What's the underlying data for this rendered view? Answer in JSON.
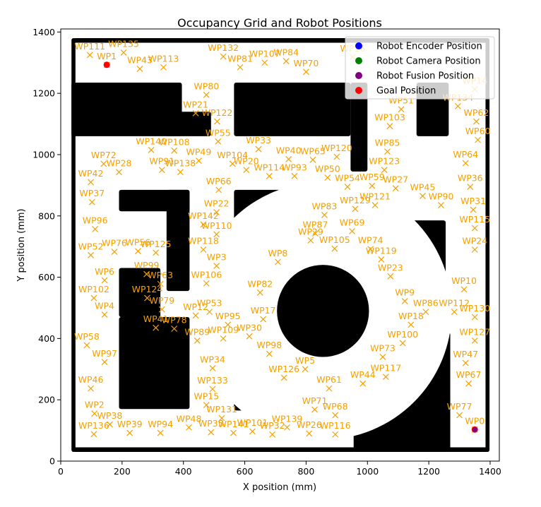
{
  "chart_data": {
    "type": "scatter",
    "title": "Occupancy Grid and Robot Positions",
    "xlabel": "X position (mm)",
    "ylabel": "Y position (mm)",
    "xlim": [
      0,
      1430
    ],
    "ylim": [
      0,
      1410
    ],
    "x_ticks": [
      0,
      200,
      400,
      600,
      800,
      1000,
      1200,
      1400
    ],
    "y_ticks": [
      0,
      200,
      400,
      600,
      800,
      1000,
      1200,
      1400
    ],
    "legend": {
      "placement": "top-right",
      "entries": [
        {
          "label": "Robot Encoder Position",
          "color": "#0000ff"
        },
        {
          "label": "Robot Camera Position",
          "color": "#008000"
        },
        {
          "label": "Robot Fusion Position",
          "color": "#800080"
        },
        {
          "label": "Goal Position",
          "color": "#ff0000"
        }
      ]
    },
    "colors": {
      "waypoint": "#f5a000",
      "obstacle": "#000000",
      "goal": "#ff0000",
      "fusion": "#800080"
    },
    "robot_positions": [
      {
        "series": "Robot Fusion Position",
        "x": 1350,
        "y": 103
      }
    ],
    "goal_positions": [
      {
        "x": 150,
        "y": 1293
      },
      {
        "x": 1350,
        "y": 103
      }
    ],
    "obstacles": {
      "rects": [
        {
          "x0": 40,
          "y0": 30,
          "x1": 1395,
          "y1": 45
        },
        {
          "x0": 40,
          "y0": 1365,
          "x1": 1395,
          "y1": 1380
        },
        {
          "x0": 35,
          "y0": 30,
          "x1": 48,
          "y1": 1380
        },
        {
          "x0": 1385,
          "y0": 30,
          "x1": 1398,
          "y1": 1380
        },
        {
          "x0": 35,
          "y0": 1060,
          "x1": 395,
          "y1": 1235
        },
        {
          "x0": 340,
          "y0": 1060,
          "x1": 490,
          "y1": 1140
        },
        {
          "x0": 565,
          "y0": 1060,
          "x1": 945,
          "y1": 1235
        },
        {
          "x0": 945,
          "y0": 945,
          "x1": 1000,
          "y1": 1235
        },
        {
          "x0": 1160,
          "y0": 1060,
          "x1": 1265,
          "y1": 1235
        },
        {
          "x0": 190,
          "y0": 815,
          "x1": 420,
          "y1": 885
        },
        {
          "x0": 345,
          "y0": 555,
          "x1": 420,
          "y1": 885
        },
        {
          "x0": 565,
          "y0": 490,
          "x1": 795,
          "y1": 885
        },
        {
          "x0": 1015,
          "y0": 715,
          "x1": 1255,
          "y1": 785
        },
        {
          "x0": 1090,
          "y0": 535,
          "x1": 1255,
          "y1": 785
        },
        {
          "x0": 190,
          "y0": 170,
          "x1": 420,
          "y1": 470
        },
        {
          "x0": 190,
          "y0": 470,
          "x1": 325,
          "y1": 630
        },
        {
          "x0": 565,
          "y0": 165,
          "x1": 790,
          "y1": 345
        },
        {
          "x0": 1000,
          "y0": 170,
          "x1": 1270,
          "y1": 420
        },
        {
          "x0": 955,
          "y0": 30,
          "x1": 1270,
          "y1": 220
        }
      ],
      "circles": [
        {
          "cx": 855,
          "cy": 490,
          "r": 150
        }
      ],
      "rings": [
        {
          "cx": 855,
          "cy": 490,
          "r_outer": 420,
          "r_inner": 250
        }
      ]
    },
    "waypoints": [
      {
        "label": "WP0",
        "x": 1350,
        "y": 103
      },
      {
        "label": "WP1",
        "x": 150,
        "y": 1293
      },
      {
        "label": "WP2",
        "x": 110,
        "y": 155
      },
      {
        "label": "WP3",
        "x": 508,
        "y": 637
      },
      {
        "label": "WP4",
        "x": 143,
        "y": 478
      },
      {
        "label": "WP5",
        "x": 797,
        "y": 300
      },
      {
        "label": "WP6",
        "x": 143,
        "y": 590
      },
      {
        "label": "WP8",
        "x": 708,
        "y": 650
      },
      {
        "label": "WP9",
        "x": 1122,
        "y": 522
      },
      {
        "label": "WP10",
        "x": 1315,
        "y": 560
      },
      {
        "label": "WP12",
        "x": 440,
        "y": 475
      },
      {
        "label": "WP14",
        "x": 1350,
        "y": 1213
      },
      {
        "label": "WP15",
        "x": 475,
        "y": 183
      },
      {
        "label": "WP16",
        "x": 952,
        "y": 1318
      },
      {
        "label": "WP17",
        "x": 660,
        "y": 463
      },
      {
        "label": "WP18",
        "x": 1142,
        "y": 445
      },
      {
        "label": "WP20",
        "x": 605,
        "y": 950
      },
      {
        "label": "WP21",
        "x": 440,
        "y": 1135
      },
      {
        "label": "WP22",
        "x": 508,
        "y": 812
      },
      {
        "label": "WP23",
        "x": 1075,
        "y": 603
      },
      {
        "label": "WP24",
        "x": 1350,
        "y": 690
      },
      {
        "label": "WP26",
        "x": 810,
        "y": 90
      },
      {
        "label": "WP27",
        "x": 1092,
        "y": 890
      },
      {
        "label": "WP28",
        "x": 190,
        "y": 943
      },
      {
        "label": "WP29",
        "x": 815,
        "y": 720
      },
      {
        "label": "WP30",
        "x": 615,
        "y": 407
      },
      {
        "label": "WP31",
        "x": 1345,
        "y": 820
      },
      {
        "label": "WP32",
        "x": 690,
        "y": 87
      },
      {
        "label": "WP33",
        "x": 645,
        "y": 1018
      },
      {
        "label": "WP34",
        "x": 495,
        "y": 303
      },
      {
        "label": "WP35",
        "x": 490,
        "y": 94
      },
      {
        "label": "WP36",
        "x": 1335,
        "y": 895
      },
      {
        "label": "WP37",
        "x": 102,
        "y": 845
      },
      {
        "label": "WP38",
        "x": 160,
        "y": 120
      },
      {
        "label": "WP39",
        "x": 225,
        "y": 92
      },
      {
        "label": "WP40",
        "x": 743,
        "y": 985
      },
      {
        "label": "WP41",
        "x": 310,
        "y": 435
      },
      {
        "label": "WP42",
        "x": 98,
        "y": 910
      },
      {
        "label": "WP43",
        "x": 258,
        "y": 1280
      },
      {
        "label": "WP44",
        "x": 985,
        "y": 253
      },
      {
        "label": "WP45",
        "x": 1180,
        "y": 865
      },
      {
        "label": "WP46",
        "x": 98,
        "y": 237
      },
      {
        "label": "WP47",
        "x": 1320,
        "y": 320
      },
      {
        "label": "WP48",
        "x": 418,
        "y": 110
      },
      {
        "label": "WP49",
        "x": 450,
        "y": 980
      },
      {
        "label": "WP50",
        "x": 870,
        "y": 925
      },
      {
        "label": "WP51",
        "x": 1110,
        "y": 1148
      },
      {
        "label": "WP52",
        "x": 98,
        "y": 672
      },
      {
        "label": "WP53",
        "x": 485,
        "y": 487
      },
      {
        "label": "WP54",
        "x": 935,
        "y": 895
      },
      {
        "label": "WP55",
        "x": 513,
        "y": 1043
      },
      {
        "label": "WP56",
        "x": 252,
        "y": 685
      },
      {
        "label": "WP58",
        "x": 85,
        "y": 378
      },
      {
        "label": "WP59",
        "x": 1015,
        "y": 898
      },
      {
        "label": "WP60",
        "x": 1360,
        "y": 1048
      },
      {
        "label": "WP61",
        "x": 875,
        "y": 237
      },
      {
        "label": "WP62",
        "x": 1355,
        "y": 1108
      },
      {
        "label": "WP63",
        "x": 325,
        "y": 578
      },
      {
        "label": "WP64",
        "x": 1320,
        "y": 972
      },
      {
        "label": "WP65",
        "x": 822,
        "y": 983
      },
      {
        "label": "WP66",
        "x": 515,
        "y": 885
      },
      {
        "label": "WP67",
        "x": 1330,
        "y": 253
      },
      {
        "label": "WP68",
        "x": 895,
        "y": 150
      },
      {
        "label": "WP69",
        "x": 950,
        "y": 750
      },
      {
        "label": "WP70",
        "x": 800,
        "y": 1270
      },
      {
        "label": "WP71",
        "x": 828,
        "y": 168
      },
      {
        "label": "WP72",
        "x": 140,
        "y": 970
      },
      {
        "label": "WP73",
        "x": 1050,
        "y": 340
      },
      {
        "label": "WP74",
        "x": 1010,
        "y": 692
      },
      {
        "label": "WP76",
        "x": 175,
        "y": 683
      },
      {
        "label": "WP77",
        "x": 1300,
        "y": 150
      },
      {
        "label": "WP78",
        "x": 370,
        "y": 432
      },
      {
        "label": "WP79",
        "x": 330,
        "y": 495
      },
      {
        "label": "WP80",
        "x": 475,
        "y": 1195
      },
      {
        "label": "WP81",
        "x": 585,
        "y": 1285
      },
      {
        "label": "WP82",
        "x": 650,
        "y": 550
      },
      {
        "label": "WP83",
        "x": 860,
        "y": 803
      },
      {
        "label": "WP84",
        "x": 735,
        "y": 1305
      },
      {
        "label": "WP85",
        "x": 1065,
        "y": 1010
      },
      {
        "label": "WP86",
        "x": 1190,
        "y": 487
      },
      {
        "label": "WP87",
        "x": 830,
        "y": 743
      },
      {
        "label": "WP89",
        "x": 445,
        "y": 393
      },
      {
        "label": "WP90",
        "x": 1240,
        "y": 835
      },
      {
        "label": "WP91",
        "x": 330,
        "y": 950
      },
      {
        "label": "WP93",
        "x": 762,
        "y": 930
      },
      {
        "label": "WP94",
        "x": 325,
        "y": 92
      },
      {
        "label": "WP95",
        "x": 545,
        "y": 445
      },
      {
        "label": "WP96",
        "x": 112,
        "y": 757
      },
      {
        "label": "WP97",
        "x": 143,
        "y": 323
      },
      {
        "label": "WP98",
        "x": 680,
        "y": 350
      },
      {
        "label": "WP99",
        "x": 280,
        "y": 610
      },
      {
        "label": "WP100",
        "x": 1115,
        "y": 385
      },
      {
        "label": "WP101",
        "x": 625,
        "y": 97
      },
      {
        "label": "WP102",
        "x": 108,
        "y": 532
      },
      {
        "label": "WP103",
        "x": 1073,
        "y": 1093
      },
      {
        "label": "WP104",
        "x": 560,
        "y": 970
      },
      {
        "label": "WP105",
        "x": 893,
        "y": 693
      },
      {
        "label": "WP106",
        "x": 475,
        "y": 580
      },
      {
        "label": "WP107",
        "x": 665,
        "y": 1300
      },
      {
        "label": "WP108",
        "x": 370,
        "y": 1013
      },
      {
        "label": "WP109",
        "x": 530,
        "y": 400
      },
      {
        "label": "WP110",
        "x": 508,
        "y": 740
      },
      {
        "label": "WP111",
        "x": 95,
        "y": 1325
      },
      {
        "label": "WP112",
        "x": 1283,
        "y": 487
      },
      {
        "label": "WP113",
        "x": 335,
        "y": 1285
      },
      {
        "label": "WP114",
        "x": 680,
        "y": 930
      },
      {
        "label": "WP115",
        "x": 1350,
        "y": 760
      },
      {
        "label": "WP116",
        "x": 895,
        "y": 87
      },
      {
        "label": "WP117",
        "x": 1060,
        "y": 275
      },
      {
        "label": "WP118",
        "x": 465,
        "y": 690
      },
      {
        "label": "WP119",
        "x": 1045,
        "y": 658
      },
      {
        "label": "WP120",
        "x": 900,
        "y": 993
      },
      {
        "label": "WP121",
        "x": 1025,
        "y": 835
      },
      {
        "label": "WP122",
        "x": 510,
        "y": 1108
      },
      {
        "label": "WP123",
        "x": 1055,
        "y": 950
      },
      {
        "label": "WP124",
        "x": 282,
        "y": 532
      },
      {
        "label": "WP125",
        "x": 310,
        "y": 680
      },
      {
        "label": "WP126",
        "x": 728,
        "y": 272
      },
      {
        "label": "WP127",
        "x": 1350,
        "y": 393
      },
      {
        "label": "WP129",
        "x": 960,
        "y": 823
      },
      {
        "label": "WP130",
        "x": 1350,
        "y": 470
      },
      {
        "label": "WP131",
        "x": 525,
        "y": 140
      },
      {
        "label": "WP132",
        "x": 530,
        "y": 1320
      },
      {
        "label": "WP133",
        "x": 495,
        "y": 235
      },
      {
        "label": "WP134",
        "x": 1295,
        "y": 1158
      },
      {
        "label": "WP135",
        "x": 205,
        "y": 1333
      },
      {
        "label": "WP136",
        "x": 108,
        "y": 88
      },
      {
        "label": "WP138",
        "x": 390,
        "y": 943
      },
      {
        "label": "WP139",
        "x": 738,
        "y": 110
      },
      {
        "label": "WP140",
        "x": 295,
        "y": 1015
      },
      {
        "label": "WP141",
        "x": 563,
        "y": 92
      },
      {
        "label": "WP142",
        "x": 465,
        "y": 772
      }
    ]
  }
}
